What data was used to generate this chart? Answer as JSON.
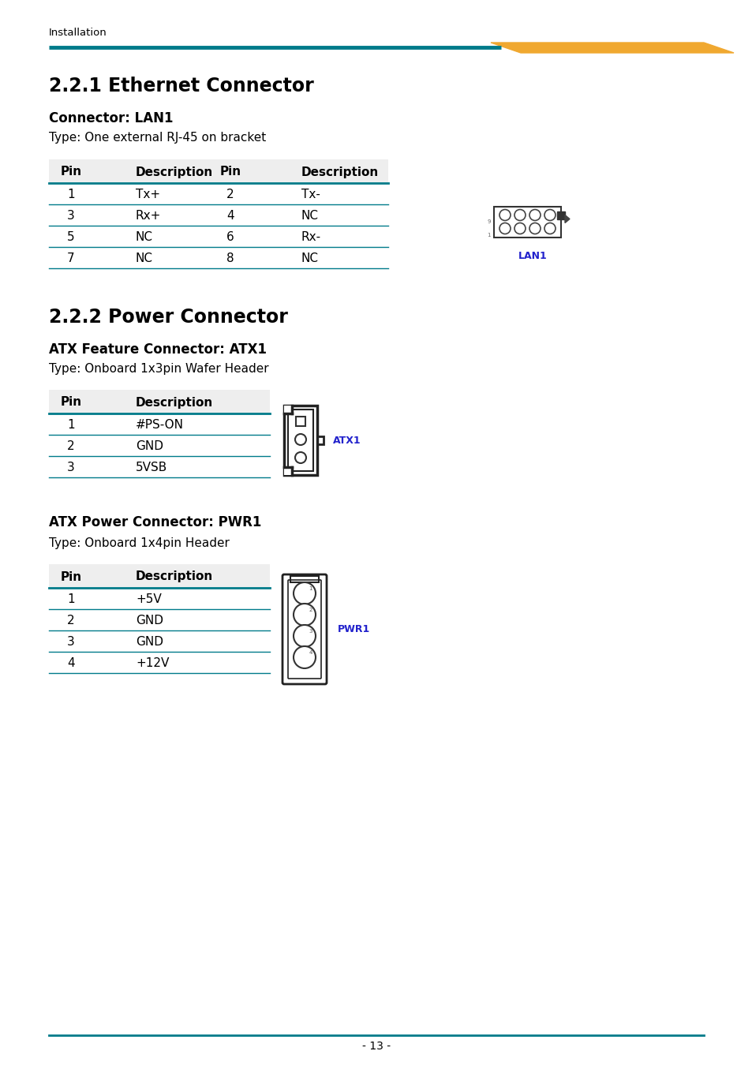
{
  "page_bg": "#ffffff",
  "header_text": "Installation",
  "header_text_color": "#000000",
  "teal_color": "#007B8A",
  "gold_color": "#F0A830",
  "section1_title": "2.2.1 Ethernet Connector",
  "section1_subtitle": "Connector: LAN1",
  "section1_type": "Type: One external RJ-45 on bracket",
  "lan1_table_headers": [
    "Pin",
    "Description",
    "Pin",
    "Description"
  ],
  "lan1_table_rows": [
    [
      "1",
      "Tx+",
      "2",
      "Tx-"
    ],
    [
      "3",
      "Rx+",
      "4",
      "NC"
    ],
    [
      "5",
      "NC",
      "6",
      "Rx-"
    ],
    [
      "7",
      "NC",
      "8",
      "NC"
    ]
  ],
  "lan1_label": "LAN1",
  "section2_title": "2.2.2 Power Connector",
  "section2a_subtitle": "ATX Feature Connector: ATX1",
  "section2a_type": "Type: Onboard 1x3pin Wafer Header",
  "atx1_table_headers": [
    "Pin",
    "Description"
  ],
  "atx1_table_rows": [
    [
      "1",
      "#PS-ON"
    ],
    [
      "2",
      "GND"
    ],
    [
      "3",
      "5VSB"
    ]
  ],
  "atx1_label": "ATX1",
  "section2b_subtitle": "ATX Power Connector: PWR1",
  "section2b_type": "Type: Onboard 1x4pin Header",
  "pwr1_table_headers": [
    "Pin",
    "Description"
  ],
  "pwr1_table_rows": [
    [
      "1",
      "+5V"
    ],
    [
      "2",
      "GND"
    ],
    [
      "3",
      "GND"
    ],
    [
      "4",
      "+12V"
    ]
  ],
  "pwr1_label": "PWR1",
  "blue_label_color": "#2222CC",
  "page_number": "- 13 -"
}
